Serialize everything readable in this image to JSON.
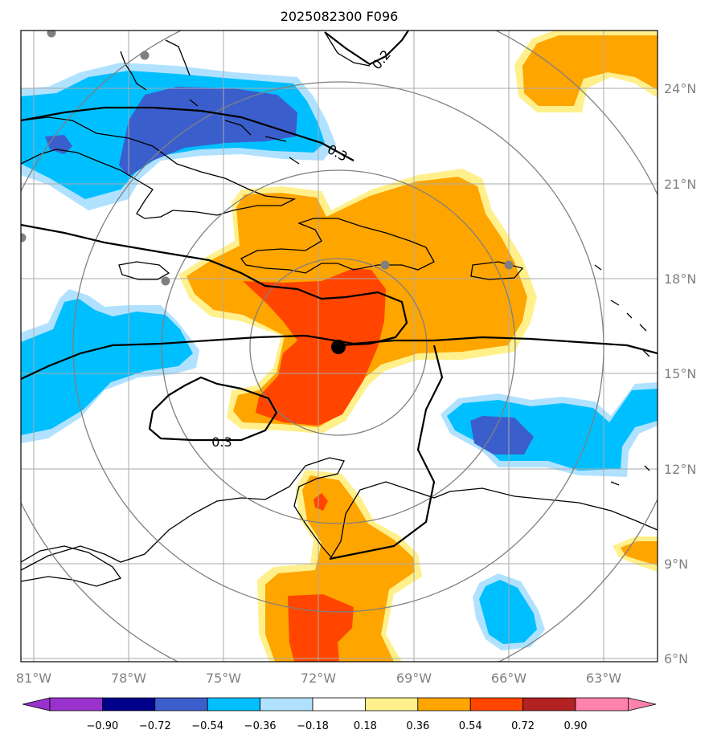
{
  "title": "2025082300 F096",
  "map": {
    "longitude_ticks": [
      "81°W",
      "78°W",
      "75°W",
      "72°W",
      "69°W",
      "66°W",
      "63°W"
    ],
    "latitude_ticks": [
      "24°N",
      "21°N",
      "18°N",
      "15°N",
      "12°N",
      "9°N",
      "6°N"
    ],
    "lon_range": [
      -81.2,
      -61.0
    ],
    "lat_range": [
      5.9,
      25.8
    ],
    "grid": true,
    "center_marker": {
      "lon": -71.4,
      "lat": 15.8
    },
    "contour_labels": [
      "0.2",
      "0.3",
      "0.3"
    ]
  },
  "colorbar": {
    "tick_labels": [
      "−0.90",
      "−0.72",
      "−0.54",
      "−0.36",
      "−0.18",
      "0.18",
      "0.36",
      "0.54",
      "0.72",
      "0.90"
    ],
    "colors": [
      "#9932cc",
      "#00008b",
      "#3a5fcd",
      "#00bfff",
      "#b0e2ff",
      "#ffffff",
      "#fff08c",
      "#ffa500",
      "#ff4500",
      "#b22222",
      "#ff82ab"
    ],
    "extend": "both"
  },
  "chart_data": {
    "type": "heatmap",
    "title": "2025082300 F096",
    "x_ticks": [
      "81°W",
      "78°W",
      "75°W",
      "72°W",
      "69°W",
      "66°W",
      "63°W"
    ],
    "y_ticks": [
      "24°N",
      "21°N",
      "18°N",
      "15°N",
      "12°N",
      "9°N",
      "6°N"
    ],
    "levels": [
      -0.9,
      -0.72,
      -0.54,
      -0.36,
      -0.18,
      0.18,
      0.36,
      0.54,
      0.72,
      0.9
    ],
    "center": {
      "lon": -71.4,
      "lat": 15.8
    },
    "range_rings_deg": [
      2.7,
      5.5,
      8.3
    ],
    "contour_lines": [
      0.2,
      0.3,
      0.3
    ]
  }
}
